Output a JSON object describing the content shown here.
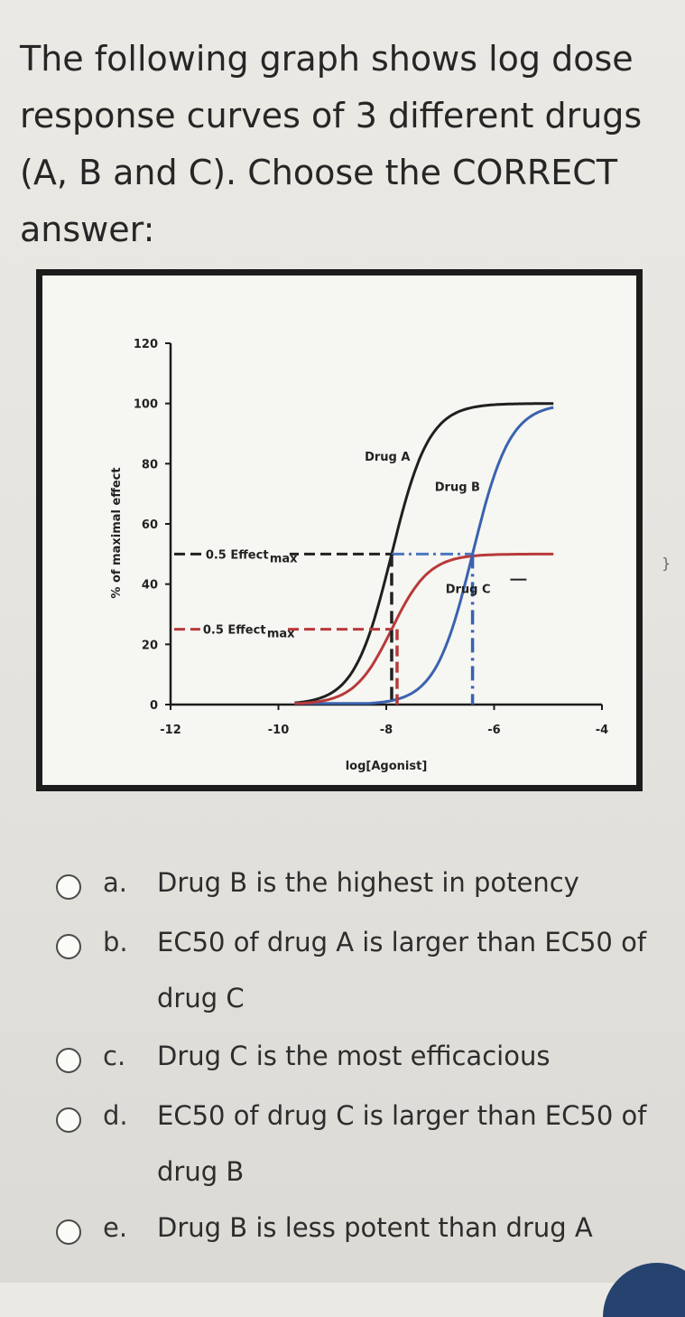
{
  "question": "The following graph shows log dose response curves of 3 different drugs (A, B and C). Choose the CORRECT answer:",
  "side_mark": "}",
  "chart_data": {
    "type": "line",
    "xlabel": "log[Agonist]",
    "ylabel": "% of maximal effect",
    "xlim": [
      -12,
      -4
    ],
    "ylim": [
      0,
      120
    ],
    "x_ticks": [
      "-12",
      "-10",
      "-8",
      "-6",
      "-4"
    ],
    "y_ticks": [
      "0",
      "20",
      "40",
      "60",
      "80",
      "100",
      "120"
    ],
    "series": [
      {
        "name": "Drug A",
        "color": "#1f1f1f",
        "emax": 100,
        "ec50_log": -7.9,
        "hill": 1.25
      },
      {
        "name": "Drug B",
        "color": "#3a62b0",
        "emax": 100,
        "ec50_log": -6.4,
        "hill": 1.25
      },
      {
        "name": "Drug C",
        "color": "#b83a3a",
        "emax": 50,
        "ec50_log": -7.9,
        "hill": 1.25
      }
    ],
    "annotations": {
      "half_max_ab": {
        "label": "0.5 Effect",
        "sub": "max",
        "y": 50
      },
      "half_max_c": {
        "label": "0.5 Effect",
        "sub": "max",
        "y": 25
      }
    }
  },
  "options": [
    {
      "letter": "a.",
      "text": "Drug B is the highest in potency"
    },
    {
      "letter": "b.",
      "text": "EC50 of drug A is larger than EC50 of drug C"
    },
    {
      "letter": "c.",
      "text": "Drug C is the most efficacious"
    },
    {
      "letter": "d.",
      "text": "EC50 of drug C is larger than EC50 of drug B"
    },
    {
      "letter": "e.",
      "text": "Drug B is less potent than drug A"
    }
  ]
}
